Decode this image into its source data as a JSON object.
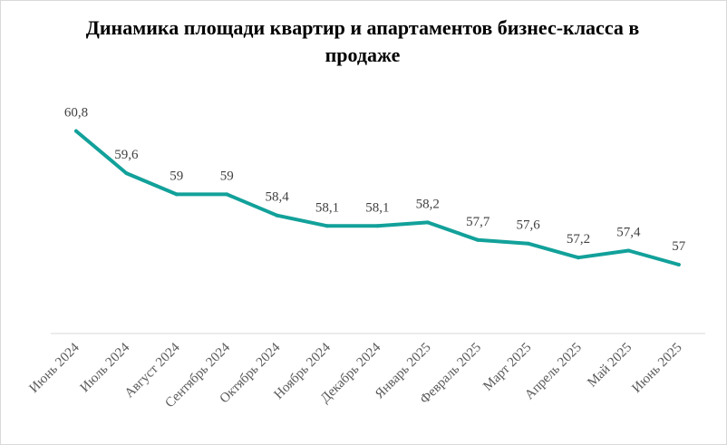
{
  "chart_data": {
    "type": "line",
    "title": "Динамика площади квартир и апартаментов  бизнес-класса в продаже",
    "categories": [
      "Июнь 2024",
      "Июль 2024",
      "Август 2024",
      "Сентябрь 2024",
      "Октябрь 2024",
      "Ноябрь 2024",
      "Декабрь 2024",
      "Январь 2025",
      "Февраль 2025",
      "Март 2025",
      "Апрель 2025",
      "Май 2025",
      "Июнь 2025"
    ],
    "series": [
      {
        "values": [
          60.8,
          59.6,
          59,
          59,
          58.4,
          58.1,
          58.1,
          58.2,
          57.7,
          57.6,
          57.2,
          57.4,
          57
        ],
        "data_labels": [
          "60,8",
          "59,6",
          "59",
          "59",
          "58,4",
          "58,1",
          "58,1",
          "58,2",
          "57,7",
          "57,6",
          "57,2",
          "57,4",
          "57"
        ],
        "color": "#12a19a"
      }
    ],
    "xlabel": "",
    "ylabel": "",
    "grid": false,
    "legend": "none"
  }
}
